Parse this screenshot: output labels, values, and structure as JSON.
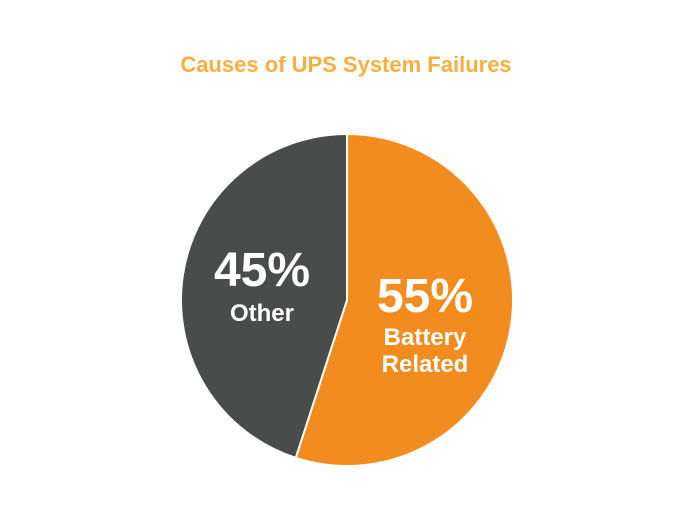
{
  "chart_data": {
    "type": "pie",
    "title": "Causes of UPS System Failures",
    "slices": [
      {
        "label": "Battery Related",
        "label_lines": [
          "Battery",
          "Related"
        ],
        "value": 55,
        "value_label": "55%",
        "color": "#f28c1e"
      },
      {
        "label": "Other",
        "label_lines": [
          "Other"
        ],
        "value": 45,
        "value_label": "45%",
        "color": "#4a4c4b"
      }
    ],
    "start_angle": "top",
    "direction": "clockwise",
    "title_color": "#fbae3e"
  }
}
